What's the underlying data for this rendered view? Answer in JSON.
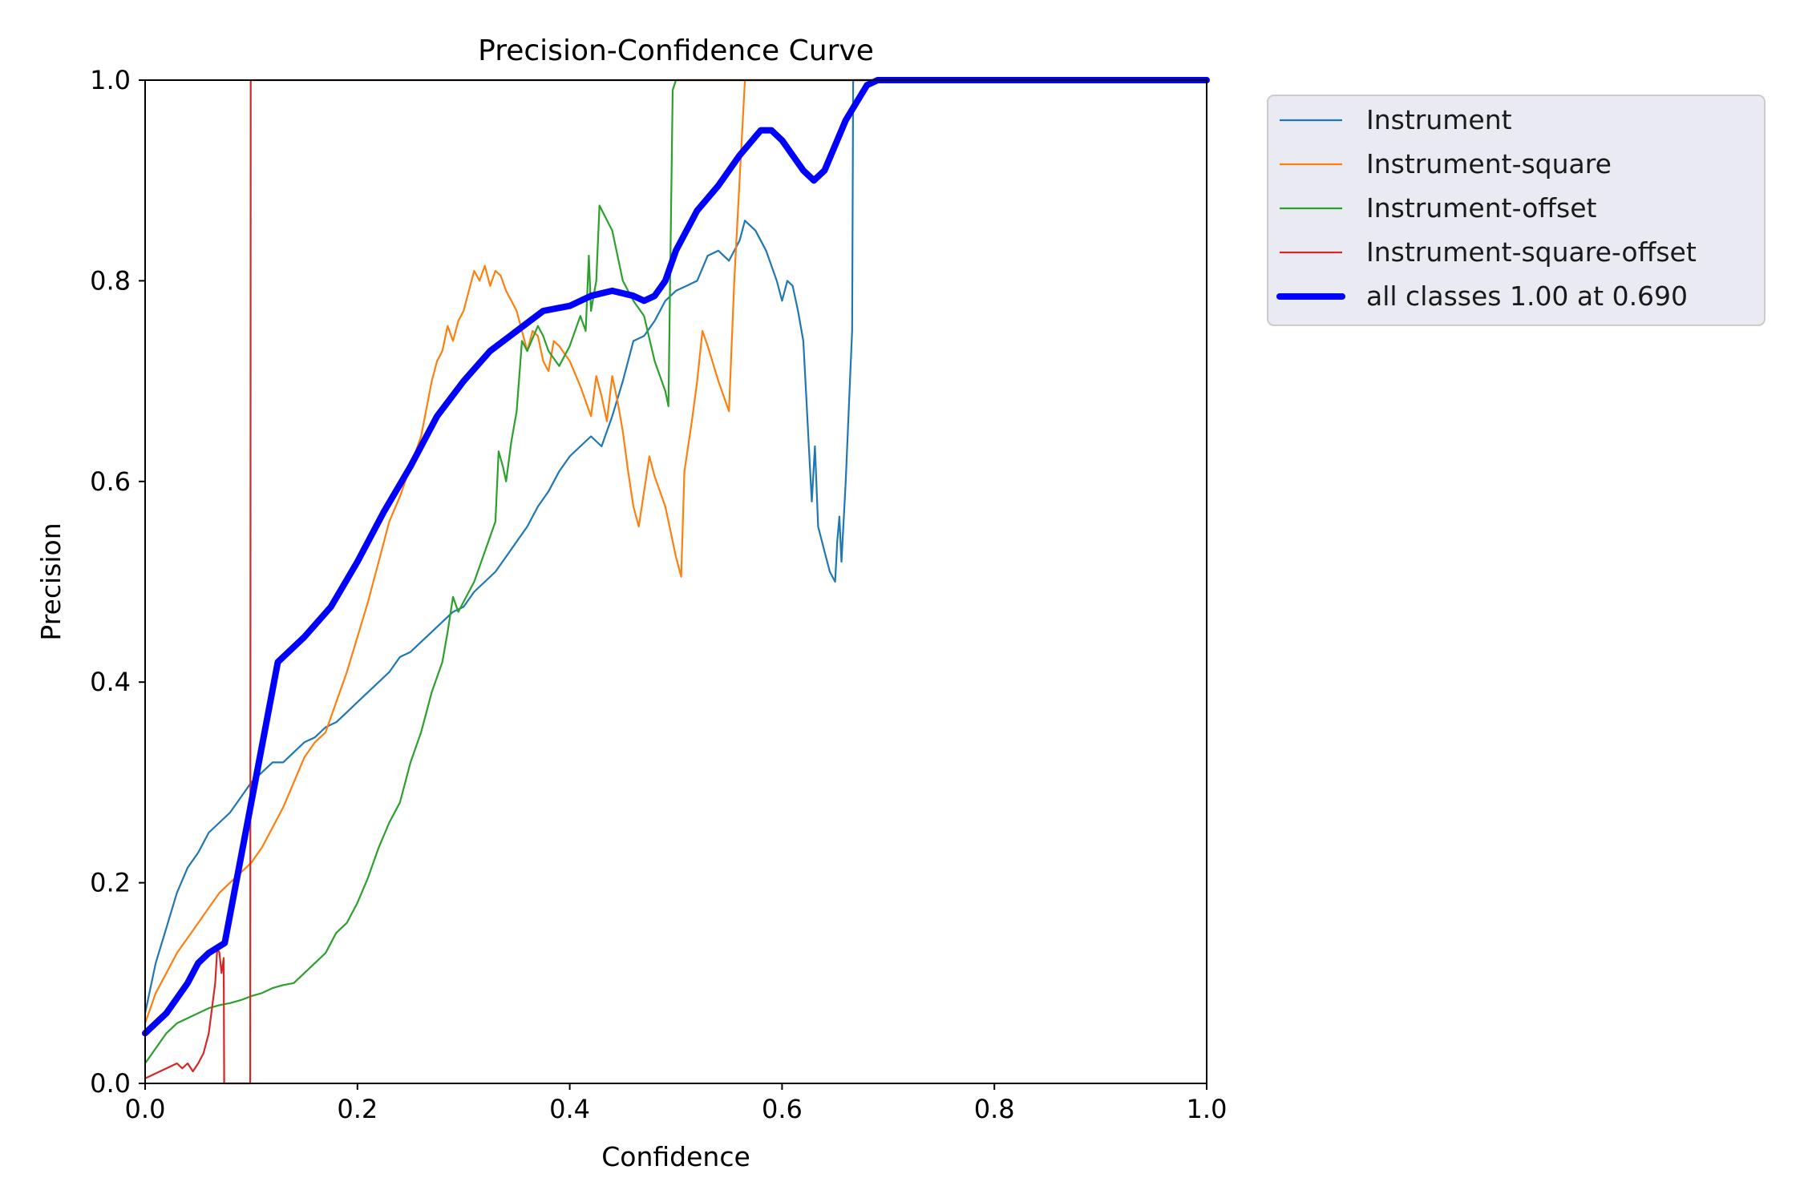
{
  "chart_data": {
    "type": "line",
    "title": "Precision-Confidence Curve",
    "xlabel": "Confidence",
    "ylabel": "Precision",
    "xlim": [
      0,
      1
    ],
    "ylim": [
      0,
      1
    ],
    "xticks": [
      "0.0",
      "0.2",
      "0.4",
      "0.6",
      "0.8",
      "1.0"
    ],
    "yticks": [
      "0.0",
      "0.2",
      "0.4",
      "0.6",
      "0.8",
      "1.0"
    ],
    "grid": false,
    "legend_position": "outside-top-right",
    "series": [
      {
        "name": "Instrument",
        "color": "#1f77b4",
        "points": [
          [
            0.0,
            0.07
          ],
          [
            0.01,
            0.12
          ],
          [
            0.02,
            0.155
          ],
          [
            0.03,
            0.19
          ],
          [
            0.04,
            0.215
          ],
          [
            0.05,
            0.23
          ],
          [
            0.06,
            0.25
          ],
          [
            0.07,
            0.26
          ],
          [
            0.08,
            0.27
          ],
          [
            0.09,
            0.285
          ],
          [
            0.1,
            0.3
          ],
          [
            0.11,
            0.31
          ],
          [
            0.12,
            0.32
          ],
          [
            0.13,
            0.32
          ],
          [
            0.14,
            0.33
          ],
          [
            0.15,
            0.34
          ],
          [
            0.16,
            0.345
          ],
          [
            0.17,
            0.355
          ],
          [
            0.18,
            0.36
          ],
          [
            0.19,
            0.37
          ],
          [
            0.2,
            0.38
          ],
          [
            0.21,
            0.39
          ],
          [
            0.22,
            0.4
          ],
          [
            0.23,
            0.41
          ],
          [
            0.24,
            0.425
          ],
          [
            0.25,
            0.43
          ],
          [
            0.26,
            0.44
          ],
          [
            0.27,
            0.45
          ],
          [
            0.28,
            0.46
          ],
          [
            0.29,
            0.47
          ],
          [
            0.3,
            0.475
          ],
          [
            0.31,
            0.49
          ],
          [
            0.32,
            0.5
          ],
          [
            0.33,
            0.51
          ],
          [
            0.34,
            0.525
          ],
          [
            0.35,
            0.54
          ],
          [
            0.36,
            0.555
          ],
          [
            0.37,
            0.575
          ],
          [
            0.38,
            0.59
          ],
          [
            0.39,
            0.61
          ],
          [
            0.4,
            0.625
          ],
          [
            0.41,
            0.635
          ],
          [
            0.42,
            0.645
          ],
          [
            0.43,
            0.635
          ],
          [
            0.44,
            0.665
          ],
          [
            0.45,
            0.7
          ],
          [
            0.46,
            0.74
          ],
          [
            0.47,
            0.745
          ],
          [
            0.48,
            0.76
          ],
          [
            0.49,
            0.78
          ],
          [
            0.5,
            0.79
          ],
          [
            0.51,
            0.795
          ],
          [
            0.52,
            0.8
          ],
          [
            0.53,
            0.825
          ],
          [
            0.54,
            0.83
          ],
          [
            0.55,
            0.82
          ],
          [
            0.56,
            0.84
          ],
          [
            0.565,
            0.86
          ],
          [
            0.575,
            0.85
          ],
          [
            0.585,
            0.83
          ],
          [
            0.595,
            0.8
          ],
          [
            0.6,
            0.78
          ],
          [
            0.605,
            0.8
          ],
          [
            0.61,
            0.795
          ],
          [
            0.615,
            0.77
          ],
          [
            0.62,
            0.74
          ],
          [
            0.623,
            0.68
          ],
          [
            0.626,
            0.62
          ],
          [
            0.628,
            0.58
          ],
          [
            0.631,
            0.635
          ],
          [
            0.634,
            0.555
          ],
          [
            0.64,
            0.53
          ],
          [
            0.645,
            0.51
          ],
          [
            0.65,
            0.5
          ],
          [
            0.652,
            0.54
          ],
          [
            0.654,
            0.565
          ],
          [
            0.656,
            0.52
          ],
          [
            0.66,
            0.6
          ],
          [
            0.664,
            0.7
          ],
          [
            0.666,
            0.75
          ],
          [
            0.667,
            1.0
          ],
          [
            1.0,
            1.0
          ]
        ]
      },
      {
        "name": "Instrument-square",
        "color": "#ff7f0e",
        "points": [
          [
            0.0,
            0.06
          ],
          [
            0.01,
            0.09
          ],
          [
            0.02,
            0.11
          ],
          [
            0.03,
            0.13
          ],
          [
            0.04,
            0.145
          ],
          [
            0.05,
            0.16
          ],
          [
            0.06,
            0.175
          ],
          [
            0.07,
            0.19
          ],
          [
            0.08,
            0.2
          ],
          [
            0.09,
            0.21
          ],
          [
            0.1,
            0.22
          ],
          [
            0.11,
            0.235
          ],
          [
            0.12,
            0.255
          ],
          [
            0.13,
            0.275
          ],
          [
            0.14,
            0.3
          ],
          [
            0.15,
            0.325
          ],
          [
            0.16,
            0.34
          ],
          [
            0.17,
            0.35
          ],
          [
            0.18,
            0.38
          ],
          [
            0.19,
            0.41
          ],
          [
            0.2,
            0.445
          ],
          [
            0.21,
            0.48
          ],
          [
            0.22,
            0.52
          ],
          [
            0.23,
            0.56
          ],
          [
            0.24,
            0.585
          ],
          [
            0.25,
            0.615
          ],
          [
            0.26,
            0.645
          ],
          [
            0.27,
            0.7
          ],
          [
            0.275,
            0.72
          ],
          [
            0.28,
            0.73
          ],
          [
            0.285,
            0.755
          ],
          [
            0.29,
            0.74
          ],
          [
            0.295,
            0.76
          ],
          [
            0.3,
            0.77
          ],
          [
            0.305,
            0.79
          ],
          [
            0.31,
            0.81
          ],
          [
            0.315,
            0.8
          ],
          [
            0.32,
            0.815
          ],
          [
            0.325,
            0.795
          ],
          [
            0.33,
            0.81
          ],
          [
            0.335,
            0.805
          ],
          [
            0.34,
            0.79
          ],
          [
            0.345,
            0.78
          ],
          [
            0.35,
            0.77
          ],
          [
            0.355,
            0.75
          ],
          [
            0.36,
            0.73
          ],
          [
            0.365,
            0.75
          ],
          [
            0.37,
            0.745
          ],
          [
            0.375,
            0.72
          ],
          [
            0.38,
            0.71
          ],
          [
            0.385,
            0.74
          ],
          [
            0.39,
            0.735
          ],
          [
            0.4,
            0.72
          ],
          [
            0.41,
            0.695
          ],
          [
            0.42,
            0.665
          ],
          [
            0.425,
            0.705
          ],
          [
            0.43,
            0.685
          ],
          [
            0.435,
            0.66
          ],
          [
            0.44,
            0.705
          ],
          [
            0.445,
            0.68
          ],
          [
            0.45,
            0.65
          ],
          [
            0.455,
            0.61
          ],
          [
            0.46,
            0.575
          ],
          [
            0.465,
            0.555
          ],
          [
            0.47,
            0.59
          ],
          [
            0.475,
            0.625
          ],
          [
            0.48,
            0.605
          ],
          [
            0.49,
            0.575
          ],
          [
            0.495,
            0.55
          ],
          [
            0.5,
            0.525
          ],
          [
            0.505,
            0.505
          ],
          [
            0.508,
            0.61
          ],
          [
            0.515,
            0.66
          ],
          [
            0.52,
            0.7
          ],
          [
            0.525,
            0.75
          ],
          [
            0.53,
            0.735
          ],
          [
            0.54,
            0.7
          ],
          [
            0.55,
            0.67
          ],
          [
            0.555,
            0.8
          ],
          [
            0.56,
            0.9
          ],
          [
            0.565,
            1.0
          ],
          [
            1.0,
            1.0
          ]
        ]
      },
      {
        "name": "Instrument-offset",
        "color": "#2ca02c",
        "points": [
          [
            0.0,
            0.02
          ],
          [
            0.01,
            0.035
          ],
          [
            0.02,
            0.05
          ],
          [
            0.03,
            0.06
          ],
          [
            0.04,
            0.065
          ],
          [
            0.05,
            0.07
          ],
          [
            0.06,
            0.075
          ],
          [
            0.07,
            0.078
          ],
          [
            0.08,
            0.08
          ],
          [
            0.09,
            0.083
          ],
          [
            0.1,
            0.087
          ],
          [
            0.11,
            0.09
          ],
          [
            0.12,
            0.095
          ],
          [
            0.13,
            0.098
          ],
          [
            0.14,
            0.1
          ],
          [
            0.15,
            0.11
          ],
          [
            0.16,
            0.12
          ],
          [
            0.17,
            0.13
          ],
          [
            0.18,
            0.15
          ],
          [
            0.19,
            0.16
          ],
          [
            0.2,
            0.18
          ],
          [
            0.21,
            0.205
          ],
          [
            0.22,
            0.235
          ],
          [
            0.23,
            0.26
          ],
          [
            0.24,
            0.28
          ],
          [
            0.25,
            0.32
          ],
          [
            0.26,
            0.35
          ],
          [
            0.27,
            0.39
          ],
          [
            0.28,
            0.42
          ],
          [
            0.285,
            0.45
          ],
          [
            0.29,
            0.485
          ],
          [
            0.295,
            0.47
          ],
          [
            0.3,
            0.48
          ],
          [
            0.31,
            0.5
          ],
          [
            0.32,
            0.53
          ],
          [
            0.33,
            0.56
          ],
          [
            0.333,
            0.63
          ],
          [
            0.337,
            0.615
          ],
          [
            0.34,
            0.6
          ],
          [
            0.345,
            0.64
          ],
          [
            0.35,
            0.67
          ],
          [
            0.355,
            0.74
          ],
          [
            0.36,
            0.73
          ],
          [
            0.37,
            0.755
          ],
          [
            0.375,
            0.745
          ],
          [
            0.38,
            0.73
          ],
          [
            0.39,
            0.715
          ],
          [
            0.4,
            0.735
          ],
          [
            0.41,
            0.765
          ],
          [
            0.415,
            0.75
          ],
          [
            0.418,
            0.825
          ],
          [
            0.42,
            0.77
          ],
          [
            0.425,
            0.8
          ],
          [
            0.428,
            0.875
          ],
          [
            0.44,
            0.85
          ],
          [
            0.45,
            0.8
          ],
          [
            0.46,
            0.78
          ],
          [
            0.47,
            0.765
          ],
          [
            0.48,
            0.72
          ],
          [
            0.49,
            0.69
          ],
          [
            0.493,
            0.675
          ],
          [
            0.497,
            0.99
          ],
          [
            0.5,
            1.0
          ],
          [
            1.0,
            1.0
          ]
        ]
      },
      {
        "name": "Instrument-square-offset",
        "color": "#d62728",
        "points": [
          [
            0.0,
            0.005
          ],
          [
            0.01,
            0.01
          ],
          [
            0.02,
            0.015
          ],
          [
            0.03,
            0.02
          ],
          [
            0.035,
            0.015
          ],
          [
            0.04,
            0.02
          ],
          [
            0.045,
            0.012
          ],
          [
            0.05,
            0.02
          ],
          [
            0.055,
            0.03
          ],
          [
            0.06,
            0.05
          ],
          [
            0.063,
            0.075
          ],
          [
            0.066,
            0.1
          ],
          [
            0.068,
            0.135
          ],
          [
            0.07,
            0.13
          ],
          [
            0.072,
            0.11
          ],
          [
            0.074,
            0.125
          ],
          [
            0.0745,
            0.0
          ],
          [
            0.099,
            0.0
          ],
          [
            0.0995,
            1.0
          ],
          [
            1.0,
            1.0
          ]
        ]
      },
      {
        "name": "all classes 1.00 at 0.690",
        "color": "#0000ff",
        "thick": true,
        "points": [
          [
            0.0,
            0.05
          ],
          [
            0.02,
            0.07
          ],
          [
            0.04,
            0.1
          ],
          [
            0.05,
            0.12
          ],
          [
            0.06,
            0.13
          ],
          [
            0.075,
            0.14
          ],
          [
            0.1,
            0.28
          ],
          [
            0.125,
            0.42
          ],
          [
            0.15,
            0.445
          ],
          [
            0.175,
            0.475
          ],
          [
            0.2,
            0.52
          ],
          [
            0.225,
            0.57
          ],
          [
            0.25,
            0.615
          ],
          [
            0.275,
            0.665
          ],
          [
            0.3,
            0.7
          ],
          [
            0.325,
            0.73
          ],
          [
            0.35,
            0.75
          ],
          [
            0.375,
            0.77
          ],
          [
            0.4,
            0.775
          ],
          [
            0.42,
            0.785
          ],
          [
            0.44,
            0.79
          ],
          [
            0.46,
            0.785
          ],
          [
            0.47,
            0.78
          ],
          [
            0.48,
            0.785
          ],
          [
            0.49,
            0.8
          ],
          [
            0.5,
            0.83
          ],
          [
            0.52,
            0.87
          ],
          [
            0.54,
            0.895
          ],
          [
            0.56,
            0.925
          ],
          [
            0.58,
            0.95
          ],
          [
            0.59,
            0.95
          ],
          [
            0.6,
            0.94
          ],
          [
            0.62,
            0.91
          ],
          [
            0.63,
            0.9
          ],
          [
            0.64,
            0.91
          ],
          [
            0.66,
            0.96
          ],
          [
            0.68,
            0.995
          ],
          [
            0.69,
            1.0
          ],
          [
            1.0,
            1.0
          ]
        ]
      }
    ]
  }
}
